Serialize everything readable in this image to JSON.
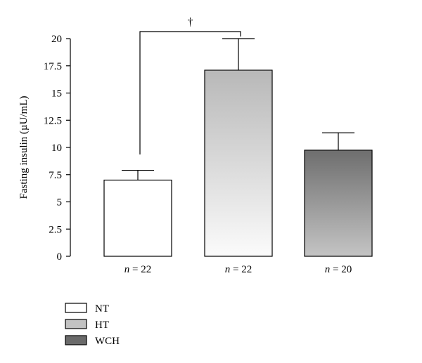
{
  "chart_data": {
    "type": "bar",
    "ylabel": "Fasting insulin (µU/mL)",
    "ylim": [
      0,
      20
    ],
    "yticks": [
      "0",
      "2.5",
      "5",
      "7.5",
      "10",
      "12.5",
      "15",
      "17.5",
      "20"
    ],
    "categories": [
      "NT",
      "HT",
      "WCH"
    ],
    "category_labels": [
      {
        "prefix": "n",
        "text": " = 22"
      },
      {
        "prefix": "n",
        "text": " = 22"
      },
      {
        "prefix": "n",
        "text": " = 20"
      }
    ],
    "values": [
      7.0,
      17.1,
      9.75
    ],
    "error_upper": [
      7.9,
      20.0,
      11.35
    ],
    "grid": false,
    "legend": {
      "placement": "bottom-left",
      "entries": [
        "NT",
        "HT",
        "WCH"
      ]
    },
    "significance": {
      "between": [
        "NT",
        "HT"
      ],
      "symbol": "†"
    },
    "colors": {
      "NT": "#ffffff",
      "HT_top": "#b8b8b8",
      "HT_bottom": "#fbfbfb",
      "WCH_top": "#6e6e6e",
      "WCH_bottom": "#c4c4c4",
      "legend_HT": "#c2c2c2",
      "legend_WCH": "#6a6a6a",
      "axis": "#000000"
    }
  }
}
